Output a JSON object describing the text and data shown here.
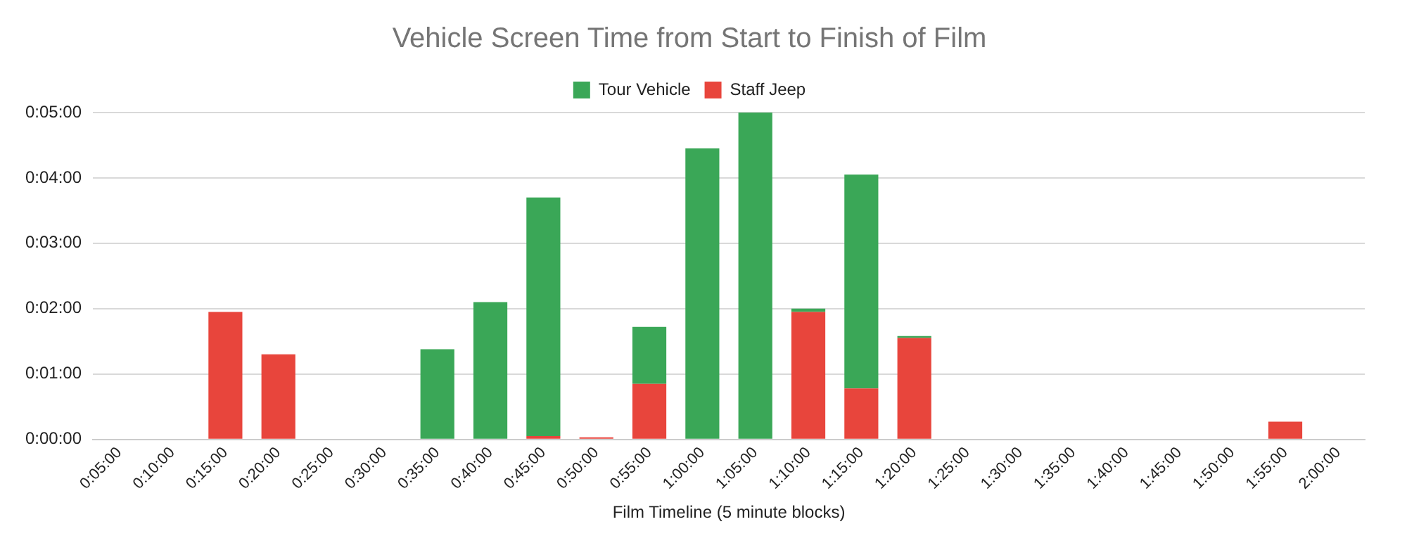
{
  "chart_data": {
    "type": "bar",
    "title": "Vehicle Screen Time from Start to Finish of Film",
    "xlabel": "Film Timeline (5 minute blocks)",
    "categories": [
      "0:05:00",
      "0:10:00",
      "0:15:00",
      "0:20:00",
      "0:25:00",
      "0:30:00",
      "0:35:00",
      "0:40:00",
      "0:45:00",
      "0:50:00",
      "0:55:00",
      "1:00:00",
      "1:05:00",
      "1:10:00",
      "1:15:00",
      "1:20:00",
      "1:25:00",
      "1:30:00",
      "1:35:00",
      "1:40:00",
      "1:45:00",
      "1:50:00",
      "1:55:00",
      "2:00:00"
    ],
    "stacked": true,
    "series": [
      {
        "name": "Staff Jeep",
        "color": "#e8453c",
        "values": [
          null,
          null,
          1.95,
          1.3,
          null,
          null,
          null,
          null,
          0.05,
          0.03,
          0.85,
          null,
          null,
          1.95,
          0.78,
          1.55,
          null,
          null,
          null,
          null,
          null,
          null,
          0.27,
          null
        ]
      },
      {
        "name": "Tour Vehicle",
        "color": "#3aa757",
        "values": [
          null,
          null,
          null,
          null,
          null,
          null,
          1.38,
          2.1,
          3.65,
          null,
          0.87,
          4.45,
          5.0,
          0.05,
          3.27,
          0.03,
          null,
          null,
          null,
          null,
          null,
          null,
          null,
          null
        ]
      }
    ],
    "ylim": [
      0,
      5
    ],
    "yticks": [
      {
        "value": 0,
        "label": "0:00:00"
      },
      {
        "value": 1,
        "label": "0:01:00"
      },
      {
        "value": 2,
        "label": "0:02:00"
      },
      {
        "value": 3,
        "label": "0:03:00"
      },
      {
        "value": 4,
        "label": "0:04:00"
      },
      {
        "value": 5,
        "label": "0:05:00"
      }
    ],
    "grid": "y",
    "legend": "top"
  }
}
